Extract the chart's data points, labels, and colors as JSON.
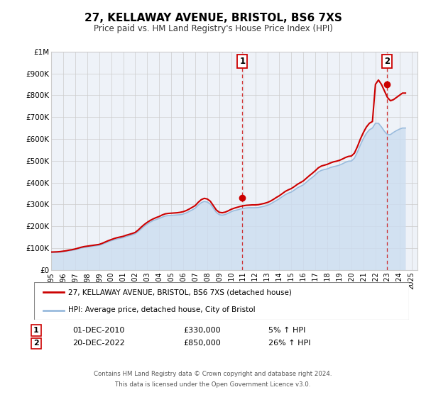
{
  "title": "27, KELLAWAY AVENUE, BRISTOL, BS6 7XS",
  "subtitle": "Price paid vs. HM Land Registry's House Price Index (HPI)",
  "xlabel": "",
  "ylabel": "",
  "ylim": [
    0,
    1000000
  ],
  "xlim_start": 1995.0,
  "xlim_end": 2025.5,
  "yticks": [
    0,
    100000,
    200000,
    300000,
    400000,
    500000,
    600000,
    700000,
    800000,
    900000,
    1000000
  ],
  "ytick_labels": [
    "£0",
    "£100K",
    "£200K",
    "£300K",
    "£400K",
    "£500K",
    "£600K",
    "£700K",
    "£800K",
    "£900K",
    "£1M"
  ],
  "xticks": [
    1995,
    1996,
    1997,
    1998,
    1999,
    2000,
    2001,
    2002,
    2003,
    2004,
    2005,
    2006,
    2007,
    2008,
    2009,
    2010,
    2011,
    2012,
    2013,
    2014,
    2015,
    2016,
    2017,
    2018,
    2019,
    2020,
    2021,
    2022,
    2023,
    2024,
    2025
  ],
  "red_line_color": "#cc0000",
  "blue_line_color": "#aaccee",
  "blue_fill_color": "#ddeeff",
  "grid_color": "#cccccc",
  "background_color": "#ffffff",
  "sale1_x": 2010.917,
  "sale1_y": 330000,
  "sale1_label": "1",
  "sale1_date": "01-DEC-2010",
  "sale1_price": "£330,000",
  "sale1_hpi": "5% ↑ HPI",
  "sale2_x": 2022.958,
  "sale2_y": 850000,
  "sale2_label": "2",
  "sale2_date": "20-DEC-2022",
  "sale2_price": "£850,000",
  "sale2_hpi": "26% ↑ HPI",
  "legend_line1": "27, KELLAWAY AVENUE, BRISTOL, BS6 7XS (detached house)",
  "legend_line2": "HPI: Average price, detached house, City of Bristol",
  "footer1": "Contains HM Land Registry data © Crown copyright and database right 2024.",
  "footer2": "This data is licensed under the Open Government Licence v3.0.",
  "hpi_red_data_x": [
    1995.0,
    1995.25,
    1995.5,
    1995.75,
    1996.0,
    1996.25,
    1996.5,
    1996.75,
    1997.0,
    1997.25,
    1997.5,
    1997.75,
    1998.0,
    1998.25,
    1998.5,
    1998.75,
    1999.0,
    1999.25,
    1999.5,
    1999.75,
    2000.0,
    2000.25,
    2000.5,
    2000.75,
    2001.0,
    2001.25,
    2001.5,
    2001.75,
    2002.0,
    2002.25,
    2002.5,
    2002.75,
    2003.0,
    2003.25,
    2003.5,
    2003.75,
    2004.0,
    2004.25,
    2004.5,
    2004.75,
    2005.0,
    2005.25,
    2005.5,
    2005.75,
    2006.0,
    2006.25,
    2006.5,
    2006.75,
    2007.0,
    2007.25,
    2007.5,
    2007.75,
    2008.0,
    2008.25,
    2008.5,
    2008.75,
    2009.0,
    2009.25,
    2009.5,
    2009.75,
    2010.0,
    2010.25,
    2010.5,
    2010.75,
    2011.0,
    2011.25,
    2011.5,
    2011.75,
    2012.0,
    2012.25,
    2012.5,
    2012.75,
    2013.0,
    2013.25,
    2013.5,
    2013.75,
    2014.0,
    2014.25,
    2014.5,
    2014.75,
    2015.0,
    2015.25,
    2015.5,
    2015.75,
    2016.0,
    2016.25,
    2016.5,
    2016.75,
    2017.0,
    2017.25,
    2017.5,
    2017.75,
    2018.0,
    2018.25,
    2018.5,
    2018.75,
    2019.0,
    2019.25,
    2019.5,
    2019.75,
    2020.0,
    2020.25,
    2020.5,
    2020.75,
    2021.0,
    2021.25,
    2021.5,
    2021.75,
    2022.0,
    2022.25,
    2022.5,
    2022.75,
    2023.0,
    2023.25,
    2023.5,
    2023.75,
    2024.0,
    2024.25,
    2024.5
  ],
  "hpi_red_data_y": [
    82000,
    82500,
    83000,
    84000,
    86000,
    88000,
    91000,
    93000,
    96000,
    100000,
    104000,
    107000,
    109000,
    111000,
    113000,
    115000,
    117000,
    122000,
    128000,
    134000,
    139000,
    144000,
    148000,
    151000,
    154000,
    159000,
    163000,
    167000,
    172000,
    183000,
    196000,
    208000,
    218000,
    227000,
    234000,
    240000,
    245000,
    252000,
    257000,
    259000,
    260000,
    261000,
    262000,
    264000,
    267000,
    272000,
    279000,
    287000,
    295000,
    310000,
    322000,
    328000,
    325000,
    315000,
    295000,
    275000,
    264000,
    262000,
    265000,
    271000,
    278000,
    283000,
    287000,
    291000,
    294000,
    296000,
    297000,
    298000,
    298000,
    299000,
    302000,
    305000,
    309000,
    315000,
    323000,
    332000,
    340000,
    350000,
    360000,
    367000,
    373000,
    382000,
    392000,
    400000,
    408000,
    420000,
    432000,
    443000,
    455000,
    468000,
    476000,
    480000,
    484000,
    490000,
    495000,
    498000,
    502000,
    508000,
    515000,
    520000,
    522000,
    535000,
    565000,
    600000,
    630000,
    655000,
    672000,
    680000,
    850000,
    870000,
    850000,
    820000,
    790000,
    775000,
    780000,
    790000,
    800000,
    810000,
    810000
  ],
  "hpi_blue_data_x": [
    1995.0,
    1995.25,
    1995.5,
    1995.75,
    1996.0,
    1996.25,
    1996.5,
    1996.75,
    1997.0,
    1997.25,
    1997.5,
    1997.75,
    1998.0,
    1998.25,
    1998.5,
    1998.75,
    1999.0,
    1999.25,
    1999.5,
    1999.75,
    2000.0,
    2000.25,
    2000.5,
    2000.75,
    2001.0,
    2001.25,
    2001.5,
    2001.75,
    2002.0,
    2002.25,
    2002.5,
    2002.75,
    2003.0,
    2003.25,
    2003.5,
    2003.75,
    2004.0,
    2004.25,
    2004.5,
    2004.75,
    2005.0,
    2005.25,
    2005.5,
    2005.75,
    2006.0,
    2006.25,
    2006.5,
    2006.75,
    2007.0,
    2007.25,
    2007.5,
    2007.75,
    2008.0,
    2008.25,
    2008.5,
    2008.75,
    2009.0,
    2009.25,
    2009.5,
    2009.75,
    2010.0,
    2010.25,
    2010.5,
    2010.75,
    2011.0,
    2011.25,
    2011.5,
    2011.75,
    2012.0,
    2012.25,
    2012.5,
    2012.75,
    2013.0,
    2013.25,
    2013.5,
    2013.75,
    2014.0,
    2014.25,
    2014.5,
    2014.75,
    2015.0,
    2015.25,
    2015.5,
    2015.75,
    2016.0,
    2016.25,
    2016.5,
    2016.75,
    2017.0,
    2017.25,
    2017.5,
    2017.75,
    2018.0,
    2018.25,
    2018.5,
    2018.75,
    2019.0,
    2019.25,
    2019.5,
    2019.75,
    2020.0,
    2020.25,
    2020.5,
    2020.75,
    2021.0,
    2021.25,
    2021.5,
    2021.75,
    2022.0,
    2022.25,
    2022.5,
    2022.75,
    2023.0,
    2023.25,
    2023.5,
    2023.75,
    2024.0,
    2024.25,
    2024.5
  ],
  "hpi_blue_data_y": [
    80000,
    80500,
    81000,
    82000,
    84000,
    86000,
    88000,
    90000,
    93000,
    96000,
    100000,
    103000,
    105000,
    107000,
    109000,
    111000,
    113000,
    118000,
    123000,
    129000,
    134000,
    138000,
    142000,
    145000,
    148000,
    153000,
    157000,
    161000,
    166000,
    176000,
    188000,
    200000,
    210000,
    219000,
    226000,
    231000,
    236000,
    242000,
    247000,
    249000,
    250000,
    251000,
    252000,
    253000,
    256000,
    261000,
    268000,
    275000,
    283000,
    297000,
    308000,
    314000,
    311000,
    302000,
    283000,
    264000,
    253000,
    251000,
    254000,
    260000,
    267000,
    272000,
    275000,
    279000,
    282000,
    284000,
    285000,
    285000,
    285000,
    286000,
    289000,
    292000,
    296000,
    302000,
    310000,
    318000,
    326000,
    336000,
    345000,
    352000,
    357000,
    366000,
    376000,
    383000,
    390000,
    402000,
    414000,
    424000,
    436000,
    449000,
    456000,
    460000,
    463000,
    469000,
    473000,
    476000,
    480000,
    486000,
    493000,
    498000,
    499000,
    512000,
    540000,
    573000,
    602000,
    626000,
    642000,
    650000,
    672000,
    672000,
    655000,
    635000,
    620000,
    620000,
    630000,
    638000,
    645000,
    650000,
    650000
  ]
}
